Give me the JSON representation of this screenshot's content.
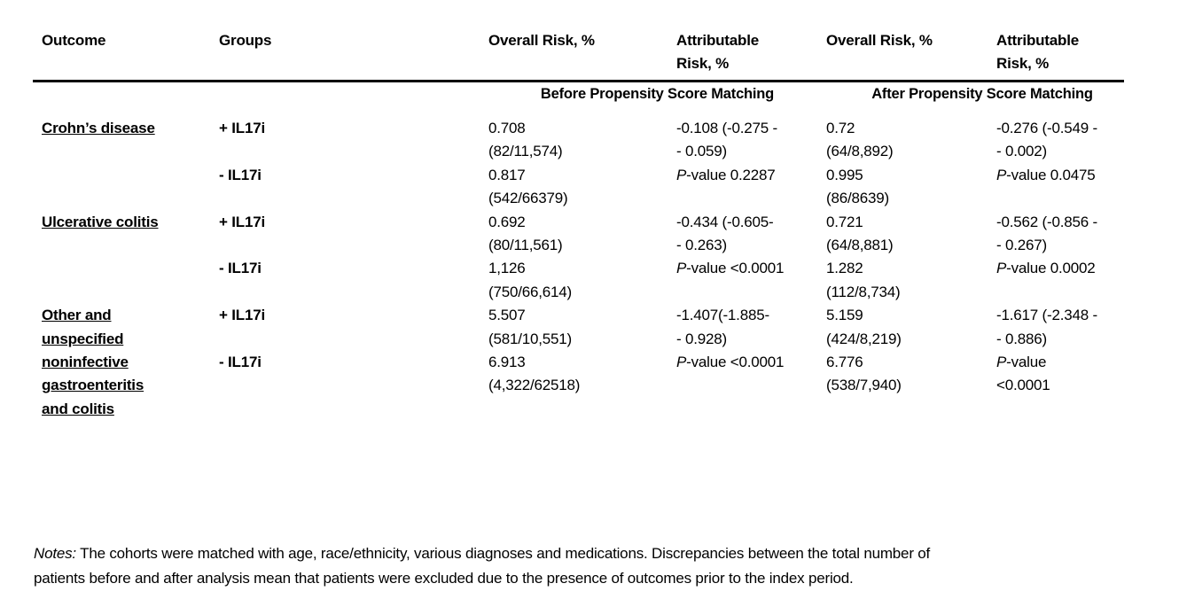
{
  "table": {
    "header": {
      "outcome": "Outcome",
      "groups": "Groups",
      "overall_before": "Overall Risk, %",
      "attributable_before": [
        "Attributable",
        "Risk, %"
      ],
      "overall_after": "Overall Risk, %",
      "attributable_after": [
        "Attributable",
        "Risk, %"
      ]
    },
    "span_headers": {
      "before": "Before Propensity Score Matching",
      "after": "After Propensity Score Matching"
    },
    "p_label": "P",
    "rows": [
      {
        "outcome": [
          "Crohn’s disease"
        ],
        "group_plus": "+ IL17i",
        "group_minus": "- IL17i",
        "before": {
          "overall_plus": [
            "0.708",
            "(82/11,574)"
          ],
          "overall_minus": [
            "0.817",
            "(542/66379)"
          ],
          "ci": [
            "-0.108 (-0.275 -",
            "- 0.059)"
          ],
          "p_rest": "-value 0.2287"
        },
        "after": {
          "overall_plus": [
            "0.72",
            "(64/8,892)"
          ],
          "overall_minus": [
            "0.995",
            "(86/8639)"
          ],
          "ci": [
            "-0.276 (-0.549 -",
            "- 0.002)"
          ],
          "p_rest": "-value 0.0475"
        }
      },
      {
        "outcome": [
          "Ulcerative colitis"
        ],
        "group_plus": "+ IL17i",
        "group_minus": "- IL17i",
        "before": {
          "overall_plus": [
            "0.692",
            "(80/11,561)"
          ],
          "overall_minus": [
            "1,126",
            "(750/66,614)"
          ],
          "ci": [
            "-0.434 (-0.605-",
            "- 0.263)"
          ],
          "p_rest": "-value <0.0001"
        },
        "after": {
          "overall_plus": [
            "0.721",
            "(64/8,881)"
          ],
          "overall_minus": [
            "1.282",
            "(112/8,734)"
          ],
          "ci": [
            "-0.562 (-0.856 -",
            "- 0.267)"
          ],
          "p_rest": "-value 0.0002"
        }
      },
      {
        "outcome": [
          "Other and",
          "unspecified",
          "noninfective",
          "gastroenteritis",
          "and colitis"
        ],
        "group_plus": "+ IL17i",
        "group_minus": "- IL17i",
        "before": {
          "overall_plus": [
            "5.507",
            "(581/10,551)"
          ],
          "overall_minus": [
            "6.913",
            "(4,322/62518)"
          ],
          "ci": [
            "-1.407(-1.885-",
            "- 0.928)"
          ],
          "p_rest": "-value <0.0001"
        },
        "after": {
          "overall_plus": [
            "5.159",
            "(424/8,219)"
          ],
          "overall_minus": [
            "6.776",
            "(538/7,940)"
          ],
          "ci": [
            "-1.617 (-2.348 -",
            "- 0.886)"
          ],
          "p_rest": [
            "-value",
            "<0.0001"
          ]
        }
      }
    ]
  },
  "notes": {
    "label": "Notes:",
    "line1": " The cohorts were matched with age, race/ethnicity, various diagnoses and medications. Discrepancies between the total number of",
    "line2": "patients before and after analysis mean that patients were excluded due to the presence of outcomes prior to the index period."
  }
}
